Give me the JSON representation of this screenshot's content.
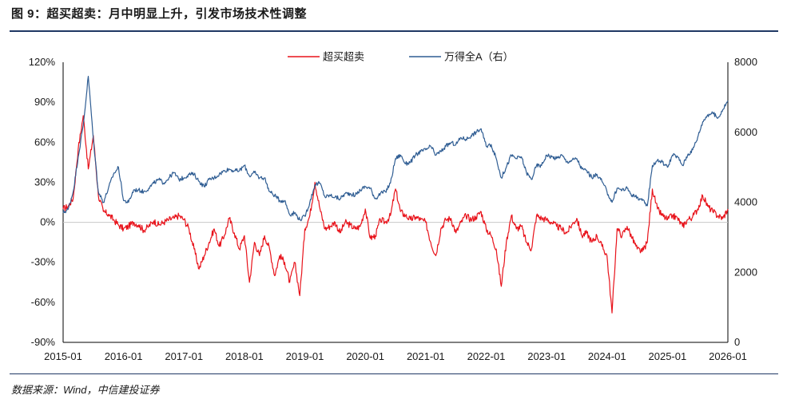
{
  "header": {
    "title": "图 9：超买超卖：月中明显上升，引发市场技术性调整"
  },
  "footer": {
    "source": "数据来源：Wind，中信建投证券"
  },
  "colors": {
    "series1": "#e8121a",
    "series2": "#2f5d93",
    "zero_line": "#c8c8c8",
    "rule": "#1f3864"
  },
  "chart_data": {
    "type": "line",
    "title": "",
    "legend_position": "top-center",
    "grid": false,
    "x_axis": {
      "tick_labels": [
        "2015-01",
        "2016-01",
        "2017-01",
        "2018-01",
        "2019-01",
        "2020-01",
        "2021-01",
        "2022-01",
        "2023-01",
        "2024-01",
        "2025-01",
        "2026-01"
      ],
      "range": [
        "2015-01",
        "2026-01"
      ]
    },
    "y_left": {
      "tick_labels": [
        "120%",
        "90%",
        "60%",
        "30%",
        "0%",
        "-30%",
        "-60%",
        "-90%"
      ],
      "range": [
        -90,
        120
      ],
      "unit": "%"
    },
    "y_right": {
      "tick_labels": [
        "8000",
        "6000",
        "4000",
        "2000",
        "0"
      ],
      "range": [
        0,
        8000
      ]
    },
    "series": [
      {
        "name": "超买超卖",
        "axis": "left",
        "points": [
          [
            "2015-01",
            10
          ],
          [
            "2015-02",
            12
          ],
          [
            "2015-03",
            18
          ],
          [
            "2015-04",
            55
          ],
          [
            "2015-05",
            80
          ],
          [
            "2015-06",
            40
          ],
          [
            "2015-07",
            65
          ],
          [
            "2015-08",
            20
          ],
          [
            "2015-09",
            8
          ],
          [
            "2015-10",
            6
          ],
          [
            "2015-11",
            2
          ],
          [
            "2015-12",
            -2
          ],
          [
            "2016-01",
            -5
          ],
          [
            "2016-02",
            -3
          ],
          [
            "2016-03",
            0
          ],
          [
            "2016-04",
            -2
          ],
          [
            "2016-05",
            -6
          ],
          [
            "2016-06",
            -3
          ],
          [
            "2016-07",
            1
          ],
          [
            "2016-08",
            -2
          ],
          [
            "2016-09",
            0
          ],
          [
            "2016-10",
            2
          ],
          [
            "2016-11",
            3
          ],
          [
            "2016-12",
            5
          ],
          [
            "2017-01",
            2
          ],
          [
            "2017-02",
            -5
          ],
          [
            "2017-03",
            -20
          ],
          [
            "2017-04",
            -35
          ],
          [
            "2017-05",
            -25
          ],
          [
            "2017-06",
            -15
          ],
          [
            "2017-07",
            -5
          ],
          [
            "2017-08",
            -18
          ],
          [
            "2017-09",
            -10
          ],
          [
            "2017-10",
            3
          ],
          [
            "2017-11",
            -8
          ],
          [
            "2017-12",
            -20
          ],
          [
            "2018-01",
            -10
          ],
          [
            "2018-02",
            -45
          ],
          [
            "2018-03",
            -15
          ],
          [
            "2018-04",
            -25
          ],
          [
            "2018-05",
            -10
          ],
          [
            "2018-06",
            -20
          ],
          [
            "2018-07",
            -40
          ],
          [
            "2018-08",
            -25
          ],
          [
            "2018-09",
            -30
          ],
          [
            "2018-10",
            -45
          ],
          [
            "2018-11",
            -30
          ],
          [
            "2018-12",
            -55
          ],
          [
            "2019-01",
            -5
          ],
          [
            "2019-02",
            5
          ],
          [
            "2019-03",
            30
          ],
          [
            "2019-04",
            10
          ],
          [
            "2019-05",
            -5
          ],
          [
            "2019-06",
            -3
          ],
          [
            "2019-07",
            0
          ],
          [
            "2019-08",
            -8
          ],
          [
            "2019-09",
            0
          ],
          [
            "2019-10",
            -2
          ],
          [
            "2019-11",
            -5
          ],
          [
            "2019-12",
            -3
          ],
          [
            "2020-01",
            10
          ],
          [
            "2020-02",
            -12
          ],
          [
            "2020-03",
            -10
          ],
          [
            "2020-04",
            2
          ],
          [
            "2020-05",
            0
          ],
          [
            "2020-06",
            5
          ],
          [
            "2020-07",
            25
          ],
          [
            "2020-08",
            8
          ],
          [
            "2020-09",
            5
          ],
          [
            "2020-10",
            2
          ],
          [
            "2020-11",
            4
          ],
          [
            "2020-12",
            2
          ],
          [
            "2021-01",
            0
          ],
          [
            "2021-02",
            -15
          ],
          [
            "2021-03",
            -25
          ],
          [
            "2021-04",
            -5
          ],
          [
            "2021-05",
            2
          ],
          [
            "2021-06",
            3
          ],
          [
            "2021-07",
            -8
          ],
          [
            "2021-08",
            0
          ],
          [
            "2021-09",
            5
          ],
          [
            "2021-10",
            2
          ],
          [
            "2021-11",
            4
          ],
          [
            "2021-12",
            8
          ],
          [
            "2022-01",
            -5
          ],
          [
            "2022-02",
            -10
          ],
          [
            "2022-03",
            -20
          ],
          [
            "2022-04",
            -48
          ],
          [
            "2022-05",
            -15
          ],
          [
            "2022-06",
            5
          ],
          [
            "2022-07",
            -5
          ],
          [
            "2022-08",
            -3
          ],
          [
            "2022-09",
            -15
          ],
          [
            "2022-10",
            -20
          ],
          [
            "2022-11",
            5
          ],
          [
            "2022-12",
            3
          ],
          [
            "2023-01",
            2
          ],
          [
            "2023-02",
            0
          ],
          [
            "2023-03",
            -3
          ],
          [
            "2023-04",
            -5
          ],
          [
            "2023-05",
            -8
          ],
          [
            "2023-06",
            -2
          ],
          [
            "2023-07",
            3
          ],
          [
            "2023-08",
            -10
          ],
          [
            "2023-09",
            -8
          ],
          [
            "2023-10",
            -15
          ],
          [
            "2023-11",
            -10
          ],
          [
            "2023-12",
            -18
          ],
          [
            "2024-01",
            -25
          ],
          [
            "2024-02",
            -68
          ],
          [
            "2024-03",
            -5
          ],
          [
            "2024-04",
            -10
          ],
          [
            "2024-05",
            -3
          ],
          [
            "2024-06",
            -12
          ],
          [
            "2024-07",
            -20
          ],
          [
            "2024-08",
            -22
          ],
          [
            "2024-09",
            -15
          ],
          [
            "2024-10",
            25
          ],
          [
            "2024-11",
            10
          ],
          [
            "2024-12",
            5
          ],
          [
            "2025-01",
            2
          ],
          [
            "2025-02",
            5
          ],
          [
            "2025-03",
            3
          ],
          [
            "2025-04",
            -3
          ],
          [
            "2025-05",
            2
          ],
          [
            "2025-06",
            4
          ],
          [
            "2025-07",
            10
          ],
          [
            "2025-08",
            20
          ],
          [
            "2025-09",
            12
          ],
          [
            "2025-10",
            8
          ],
          [
            "2025-11",
            5
          ],
          [
            "2025-12",
            3
          ],
          [
            "2026-01",
            10
          ]
        ]
      },
      {
        "name": "万得全A（右）",
        "axis": "right",
        "points": [
          [
            "2015-01",
            3700
          ],
          [
            "2015-02",
            3800
          ],
          [
            "2015-03",
            4300
          ],
          [
            "2015-04",
            5300
          ],
          [
            "2015-05",
            6200
          ],
          [
            "2015-06",
            7600
          ],
          [
            "2015-07",
            5800
          ],
          [
            "2015-08",
            4300
          ],
          [
            "2015-09",
            4000
          ],
          [
            "2015-10",
            4400
          ],
          [
            "2015-11",
            4800
          ],
          [
            "2015-12",
            5000
          ],
          [
            "2016-01",
            4050
          ],
          [
            "2016-02",
            4000
          ],
          [
            "2016-03",
            4350
          ],
          [
            "2016-04",
            4350
          ],
          [
            "2016-05",
            4300
          ],
          [
            "2016-06",
            4400
          ],
          [
            "2016-07",
            4550
          ],
          [
            "2016-08",
            4650
          ],
          [
            "2016-09",
            4550
          ],
          [
            "2016-10",
            4700
          ],
          [
            "2016-11",
            4850
          ],
          [
            "2016-12",
            4650
          ],
          [
            "2017-01",
            4700
          ],
          [
            "2017-02",
            4800
          ],
          [
            "2017-03",
            4800
          ],
          [
            "2017-04",
            4600
          ],
          [
            "2017-05",
            4450
          ],
          [
            "2017-06",
            4650
          ],
          [
            "2017-07",
            4700
          ],
          [
            "2017-08",
            4800
          ],
          [
            "2017-09",
            4900
          ],
          [
            "2017-10",
            4950
          ],
          [
            "2017-11",
            4900
          ],
          [
            "2017-12",
            4900
          ],
          [
            "2018-01",
            5050
          ],
          [
            "2018-02",
            4750
          ],
          [
            "2018-03",
            4850
          ],
          [
            "2018-04",
            4700
          ],
          [
            "2018-05",
            4700
          ],
          [
            "2018-06",
            4300
          ],
          [
            "2018-07",
            4200
          ],
          [
            "2018-08",
            4050
          ],
          [
            "2018-09",
            4050
          ],
          [
            "2018-10",
            3650
          ],
          [
            "2018-11",
            3700
          ],
          [
            "2018-12",
            3500
          ],
          [
            "2019-01",
            3600
          ],
          [
            "2019-02",
            4000
          ],
          [
            "2019-03",
            4500
          ],
          [
            "2019-04",
            4550
          ],
          [
            "2019-05",
            4150
          ],
          [
            "2019-06",
            4200
          ],
          [
            "2019-07",
            4150
          ],
          [
            "2019-08",
            4100
          ],
          [
            "2019-09",
            4250
          ],
          [
            "2019-10",
            4250
          ],
          [
            "2019-11",
            4200
          ],
          [
            "2019-12",
            4350
          ],
          [
            "2020-01",
            4450
          ],
          [
            "2020-02",
            4400
          ],
          [
            "2020-03",
            4100
          ],
          [
            "2020-04",
            4250
          ],
          [
            "2020-05",
            4300
          ],
          [
            "2020-06",
            4550
          ],
          [
            "2020-07",
            5250
          ],
          [
            "2020-08",
            5350
          ],
          [
            "2020-09",
            5100
          ],
          [
            "2020-10",
            5150
          ],
          [
            "2020-11",
            5350
          ],
          [
            "2020-12",
            5450
          ],
          [
            "2021-01",
            5500
          ],
          [
            "2021-02",
            5600
          ],
          [
            "2021-03",
            5350
          ],
          [
            "2021-04",
            5450
          ],
          [
            "2021-05",
            5600
          ],
          [
            "2021-06",
            5700
          ],
          [
            "2021-07",
            5650
          ],
          [
            "2021-08",
            5850
          ],
          [
            "2021-09",
            5800
          ],
          [
            "2021-10",
            5900
          ],
          [
            "2021-11",
            6000
          ],
          [
            "2021-12",
            6100
          ],
          [
            "2022-01",
            5600
          ],
          [
            "2022-02",
            5650
          ],
          [
            "2022-03",
            5250
          ],
          [
            "2022-04",
            4700
          ],
          [
            "2022-05",
            5000
          ],
          [
            "2022-06",
            5350
          ],
          [
            "2022-07",
            5250
          ],
          [
            "2022-08",
            5300
          ],
          [
            "2022-09",
            4850
          ],
          [
            "2022-10",
            4650
          ],
          [
            "2022-11",
            5050
          ],
          [
            "2022-12",
            5050
          ],
          [
            "2023-01",
            5350
          ],
          [
            "2023-02",
            5300
          ],
          [
            "2023-03",
            5250
          ],
          [
            "2023-04",
            5350
          ],
          [
            "2023-05",
            5150
          ],
          [
            "2023-06",
            5200
          ],
          [
            "2023-07",
            5250
          ],
          [
            "2023-08",
            4950
          ],
          [
            "2023-09",
            4900
          ],
          [
            "2023-10",
            4700
          ],
          [
            "2023-11",
            4800
          ],
          [
            "2023-12",
            4600
          ],
          [
            "2024-01",
            4300
          ],
          [
            "2024-02",
            4000
          ],
          [
            "2024-03",
            4400
          ],
          [
            "2024-04",
            4350
          ],
          [
            "2024-05",
            4400
          ],
          [
            "2024-06",
            4200
          ],
          [
            "2024-07",
            4150
          ],
          [
            "2024-08",
            4050
          ],
          [
            "2024-09",
            3900
          ],
          [
            "2024-10",
            5050
          ],
          [
            "2024-11",
            5200
          ],
          [
            "2024-12",
            5150
          ],
          [
            "2025-01",
            5000
          ],
          [
            "2025-02",
            5350
          ],
          [
            "2025-03",
            5300
          ],
          [
            "2025-04",
            5050
          ],
          [
            "2025-05",
            5350
          ],
          [
            "2025-06",
            5500
          ],
          [
            "2025-07",
            5850
          ],
          [
            "2025-08",
            6300
          ],
          [
            "2025-09",
            6500
          ],
          [
            "2025-10",
            6550
          ],
          [
            "2025-11",
            6400
          ],
          [
            "2025-12",
            6650
          ],
          [
            "2026-01",
            6900
          ]
        ]
      }
    ]
  }
}
